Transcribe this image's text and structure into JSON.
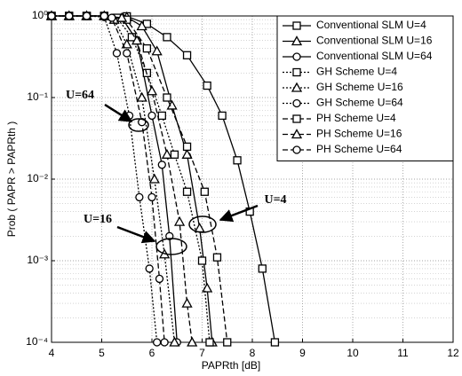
{
  "chart_data": {
    "type": "line",
    "log_y": true,
    "grid": true,
    "minor_grid": true,
    "legend": "upper right",
    "xlabel": "PAPRth [dB]",
    "ylabel": "Prob ( PAPR > PAPRth )",
    "xlim": [
      4,
      12
    ],
    "xticks": [
      4,
      5,
      6,
      7,
      8,
      9,
      10,
      11,
      12
    ],
    "ylim": [
      0.0001,
      1
    ],
    "yticks": [
      {
        "value": 0.0001,
        "label": "10⁻⁴"
      },
      {
        "value": 0.001,
        "label": "10⁻³"
      },
      {
        "value": 0.01,
        "label": "10⁻²"
      },
      {
        "value": 0.1,
        "label": "10⁻¹"
      },
      {
        "value": 1,
        "label": "10⁰"
      }
    ],
    "annotations": [
      "U=64",
      "U=16",
      "U=4"
    ],
    "series": [
      {
        "name": "Conventional SLM U=4",
        "color": "#000000",
        "dash": "solid",
        "marker": "square",
        "x": [
          4,
          4.35,
          4.7,
          5.05,
          5.5,
          5.9,
          6.3,
          6.7,
          7.1,
          7.4,
          7.7,
          7.95,
          8.2,
          8.45
        ],
        "values": [
          1,
          1,
          1,
          1,
          0.99,
          0.8,
          0.55,
          0.33,
          0.14,
          0.06,
          0.017,
          0.004,
          0.0008,
          0.0001
        ]
      },
      {
        "name": "Conventional SLM U=16",
        "color": "#000000",
        "dash": "solid",
        "marker": "triangle",
        "x": [
          4,
          4.35,
          4.7,
          5.05,
          5.5,
          5.8,
          6.1,
          6.4,
          6.7,
          6.95,
          7.1,
          7.2
        ],
        "values": [
          1,
          1,
          1,
          1,
          0.97,
          0.75,
          0.37,
          0.08,
          0.02,
          0.0025,
          0.00046,
          0.0001
        ]
      },
      {
        "name": "Conventional SLM U=64",
        "color": "#000000",
        "dash": "solid",
        "marker": "circle",
        "x": [
          4,
          4.35,
          4.7,
          5.05,
          5.4,
          5.7,
          6.0,
          6.2,
          6.35,
          6.5
        ],
        "values": [
          1,
          1,
          1,
          1,
          0.95,
          0.5,
          0.06,
          0.015,
          0.002,
          0.0001
        ]
      },
      {
        "name": "GH Scheme U=4",
        "color": "#000000",
        "dash": "dotted",
        "marker": "square",
        "x": [
          4,
          4.35,
          4.7,
          5.05,
          5.3,
          5.6,
          5.9,
          6.2,
          6.45,
          6.7,
          7.0,
          7.15
        ],
        "values": [
          1,
          1,
          1,
          1,
          0.95,
          0.55,
          0.2,
          0.06,
          0.02,
          0.007,
          0.001,
          0.0001
        ]
      },
      {
        "name": "GH Scheme U=16",
        "color": "#000000",
        "dash": "dotted",
        "marker": "triangle",
        "x": [
          4,
          4.35,
          4.7,
          5.05,
          5.25,
          5.5,
          5.8,
          6.05,
          6.25,
          6.45
        ],
        "values": [
          1,
          1,
          1,
          1,
          0.9,
          0.45,
          0.1,
          0.01,
          0.0012,
          0.0001
        ]
      },
      {
        "name": "GH Scheme U=64",
        "color": "#000000",
        "dash": "dotted",
        "marker": "circle",
        "x": [
          4,
          4.35,
          4.7,
          5.05,
          5.3,
          5.55,
          5.75,
          5.95,
          6.1
        ],
        "values": [
          1,
          1,
          1,
          0.97,
          0.35,
          0.06,
          0.006,
          0.0008,
          0.0001
        ]
      },
      {
        "name": "PH Scheme U=4",
        "color": "#000000",
        "dash": "dashed",
        "marker": "square",
        "x": [
          4,
          4.35,
          4.7,
          5.05,
          5.5,
          5.9,
          6.3,
          6.7,
          7.05,
          7.3,
          7.5
        ],
        "values": [
          1,
          1,
          1,
          1,
          0.9,
          0.4,
          0.1,
          0.025,
          0.007,
          0.0011,
          0.0001
        ]
      },
      {
        "name": "PH Scheme U=16",
        "color": "#000000",
        "dash": "dashed",
        "marker": "triangle",
        "x": [
          4,
          4.35,
          4.7,
          5.05,
          5.4,
          5.7,
          6.0,
          6.3,
          6.55,
          6.7,
          6.8
        ],
        "values": [
          1,
          1,
          1,
          1,
          0.95,
          0.5,
          0.12,
          0.02,
          0.003,
          0.0003,
          0.0001
        ]
      },
      {
        "name": "PH Scheme U=64",
        "color": "#000000",
        "dash": "dashed",
        "marker": "circle",
        "x": [
          4,
          4.35,
          4.7,
          5.05,
          5.2,
          5.5,
          5.8,
          6.0,
          6.15,
          6.25
        ],
        "values": [
          1,
          1,
          1,
          1,
          0.95,
          0.35,
          0.05,
          0.006,
          0.0006,
          0.0001
        ]
      }
    ]
  }
}
